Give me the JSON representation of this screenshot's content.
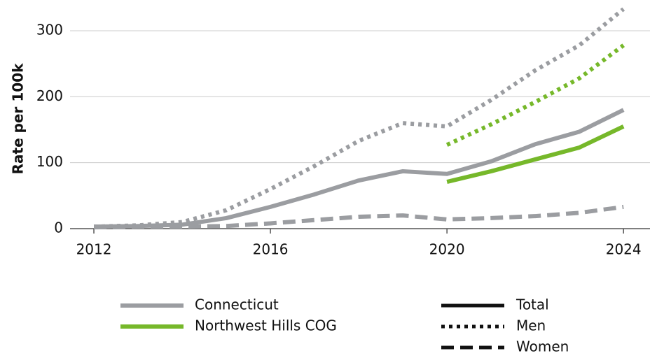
{
  "chart_data": {
    "type": "line",
    "ylabel": "Rate per 100k",
    "x": [
      2012,
      2013,
      2014,
      2015,
      2016,
      2017,
      2018,
      2019,
      2020,
      2021,
      2022,
      2023,
      2024
    ],
    "xlim": [
      2011.46,
      2024.6
    ],
    "xticks": [
      2012,
      2016,
      2020,
      2024
    ],
    "ylim": [
      0,
      335
    ],
    "yticks": [
      0,
      100,
      200,
      300
    ],
    "grid": true,
    "regions": [
      {
        "name": "Connecticut",
        "color": "#9b9da1"
      },
      {
        "name": "Northwest Hills COG",
        "color": "#76b82a"
      }
    ],
    "measures": [
      {
        "name": "Total",
        "style": "solid"
      },
      {
        "name": "Men",
        "style": "dotted"
      },
      {
        "name": "Women",
        "style": "dashed"
      }
    ],
    "series": [
      {
        "region": "Connecticut",
        "measure": "Total",
        "values": [
          3,
          4,
          6,
          16,
          33,
          52,
          73,
          87,
          83,
          102,
          128,
          147,
          180
        ]
      },
      {
        "region": "Connecticut",
        "measure": "Men",
        "values": [
          3,
          5,
          10,
          28,
          60,
          95,
          133,
          160,
          155,
          195,
          240,
          278,
          333
        ]
      },
      {
        "region": "Connecticut",
        "measure": "Women",
        "values": [
          2,
          3,
          3,
          4,
          8,
          13,
          18,
          20,
          14,
          16,
          19,
          24,
          33
        ]
      },
      {
        "region": "Northwest Hills COG",
        "measure": "Total",
        "values": [
          null,
          null,
          null,
          null,
          null,
          null,
          null,
          null,
          71,
          87,
          105,
          123,
          155
        ]
      },
      {
        "region": "Northwest Hills COG",
        "measure": "Men",
        "values": [
          null,
          null,
          null,
          null,
          null,
          null,
          null,
          null,
          127,
          158,
          192,
          228,
          278
        ]
      }
    ]
  }
}
